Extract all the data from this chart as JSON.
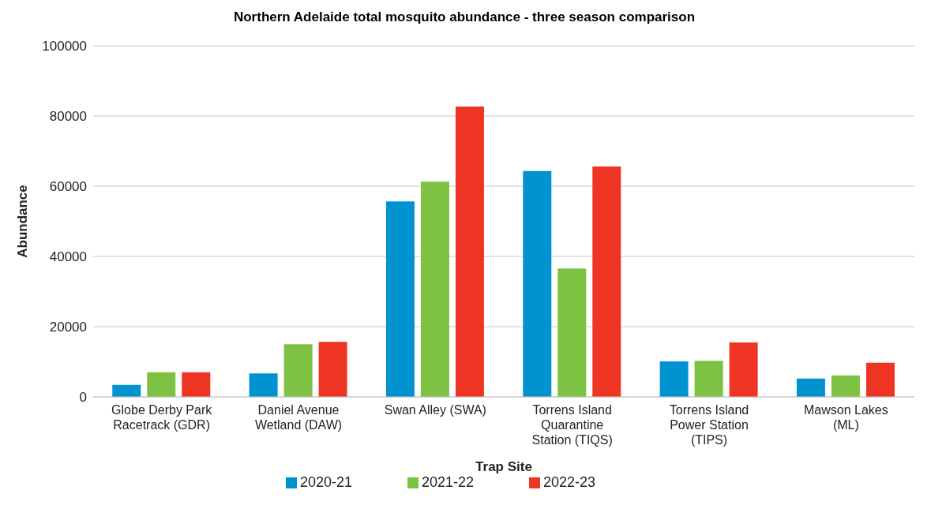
{
  "chart_data": {
    "type": "bar",
    "title": "Northern Adelaide total mosquito abundance - three season comparison",
    "xlabel": "Trap Site",
    "ylabel": "Abundance",
    "categories": [
      "Globe Derby Park Racetrack (GDR)",
      "Daniel Avenue Wetland (DAW)",
      "Swan Alley (SWA)",
      "Torrens Island Quarantine Station (TIQS)",
      "Torrens Island Power Station (TIPS)",
      "Mawson Lakes (ML)"
    ],
    "series": [
      {
        "name": "2020-21",
        "color": "#0093d0",
        "values": [
          3400,
          6700,
          55700,
          64300,
          10100,
          5200
        ]
      },
      {
        "name": "2021-22",
        "color": "#7dc243",
        "values": [
          7000,
          15000,
          61300,
          36600,
          10300,
          6100
        ]
      },
      {
        "name": "2022-23",
        "color": "#ee3524",
        "values": [
          7000,
          15700,
          82700,
          65600,
          15500,
          9700
        ]
      }
    ],
    "ylim": [
      0,
      100000
    ],
    "yticks": [
      0,
      20000,
      40000,
      60000,
      80000,
      100000
    ],
    "grid": "y",
    "legend": "bottom"
  }
}
